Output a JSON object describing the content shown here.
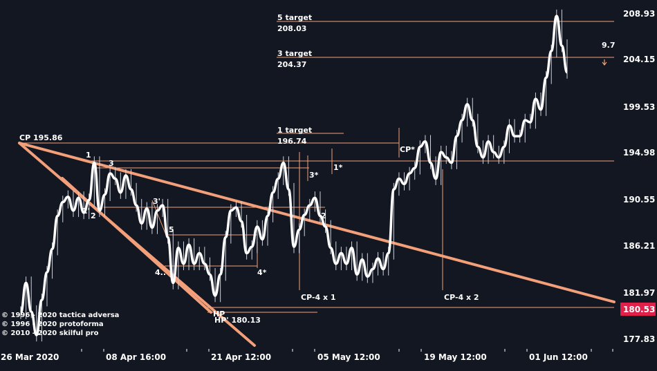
{
  "chart_data": {
    "type": "line",
    "title": "",
    "xlabel": "",
    "ylabel": "",
    "ylim": [
      177.0,
      209.8
    ],
    "y_ticks": [
      208.93,
      204.15,
      199.53,
      194.98,
      190.55,
      186.21,
      181.97,
      177.83
    ],
    "x_ticks": [
      "26 Mar 2020",
      "08 Apr 16:00",
      "21 Apr 12:00",
      "05 May 12:00",
      "19 May 12:00",
      "01 Jun 12:00"
    ],
    "grid": false,
    "last_price": {
      "label": "180.53",
      "value": 180.53,
      "color": "#e0204a"
    },
    "series": [
      {
        "values": [
          180.4,
          183.2,
          180.5,
          178.3,
          181.6,
          184.2,
          186.4,
          189.5,
          190.8,
          191.3,
          190.0,
          191.2,
          189.8,
          191.0,
          194.5,
          190.0,
          191.5,
          193.5,
          193.0,
          191.7,
          193.3,
          192.0,
          190.5,
          188.8,
          190.2,
          188.4,
          190.0,
          190.5,
          187.5,
          183.2,
          186.5,
          185.0,
          186.8,
          185.0,
          186.0,
          185.0,
          184.0,
          182.0,
          184.0,
          187.5,
          190.0,
          190.3,
          189.0,
          186.0,
          186.6,
          188.5,
          187.3,
          189.5,
          191.7,
          193.0,
          194.5,
          192.0,
          186.6,
          188.2,
          189.6,
          190.5,
          191.2,
          189.5,
          188.5,
          186.5,
          185.0,
          186.0,
          185.0,
          186.5,
          184.0,
          185.4,
          183.8,
          184.5,
          185.5,
          184.5,
          186.0,
          192.0,
          193.0,
          192.5,
          193.5,
          194.0,
          196.0,
          196.5,
          194.5,
          193.0,
          195.5,
          195.0,
          194.5,
          197.0,
          198.5,
          200.0,
          198.5,
          196.0,
          195.0,
          196.5,
          195.5,
          195.0,
          196.0,
          198.0,
          197.0,
          197.0,
          198.5,
          198.3,
          200.5,
          199.5,
          202.5,
          205.0,
          208.3,
          205.5,
          203.0
        ],
        "color": "#ffffff"
      }
    ],
    "trendlines": [
      {
        "label": "CP 195.86",
        "color": "#f3a07a"
      },
      {
        "label": "HP' 180.13",
        "color": "#f3a07a"
      }
    ],
    "levels": [
      {
        "label": "5 target",
        "value": "208.03"
      },
      {
        "label": "3 target",
        "value": "204.37"
      },
      {
        "label": "1 target",
        "value": "196.74"
      }
    ],
    "annotations": [
      "1",
      "2'",
      "2",
      "3",
      "3'",
      "5",
      "4..",
      "4*",
      "3*",
      "1*",
      "2",
      "CP*",
      "CP-4 x 1",
      "CP-4 x 2",
      "HP",
      "9.7"
    ]
  },
  "copyright": [
    "© 1996 - 2020 tactica adversa",
    "© 1996 - 2020 protoforma",
    "© 2010 - 2020 skilful pro"
  ]
}
